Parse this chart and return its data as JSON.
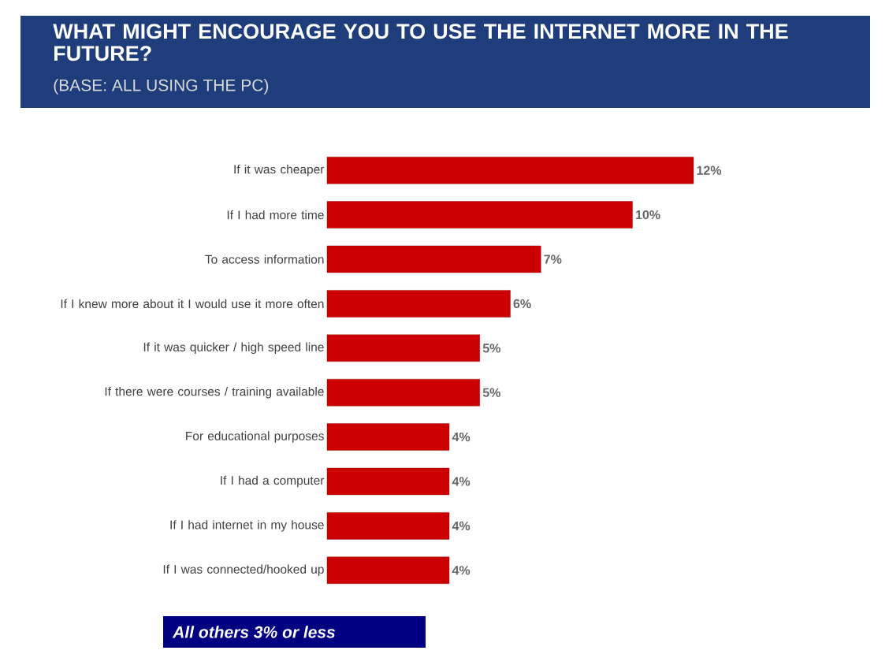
{
  "chart_data": {
    "type": "bar",
    "orientation": "horizontal",
    "title": "WHAT MIGHT ENCOURAGE YOU TO USE THE INTERNET MORE IN THE FUTURE?",
    "subtitle": "(BASE: ALL USING THE PC)",
    "categories": [
      "If it was cheaper",
      "If I had more time",
      "To access information",
      "If I knew more about it I would use it more often",
      "If it was quicker / high speed line",
      "If there were courses / training available",
      "For educational purposes",
      "If I had a computer",
      "If I had internet in my house",
      "If I was connected/hooked up"
    ],
    "values": [
      12,
      10,
      7,
      6,
      5,
      5,
      4,
      4,
      4,
      4
    ],
    "value_labels": [
      "12%",
      "10%",
      "7%",
      "6%",
      "5%",
      "5%",
      "4%",
      "4%",
      "4%",
      "4%"
    ],
    "color": "#cc0000",
    "annotations": [
      "All others 3% or less"
    ]
  }
}
